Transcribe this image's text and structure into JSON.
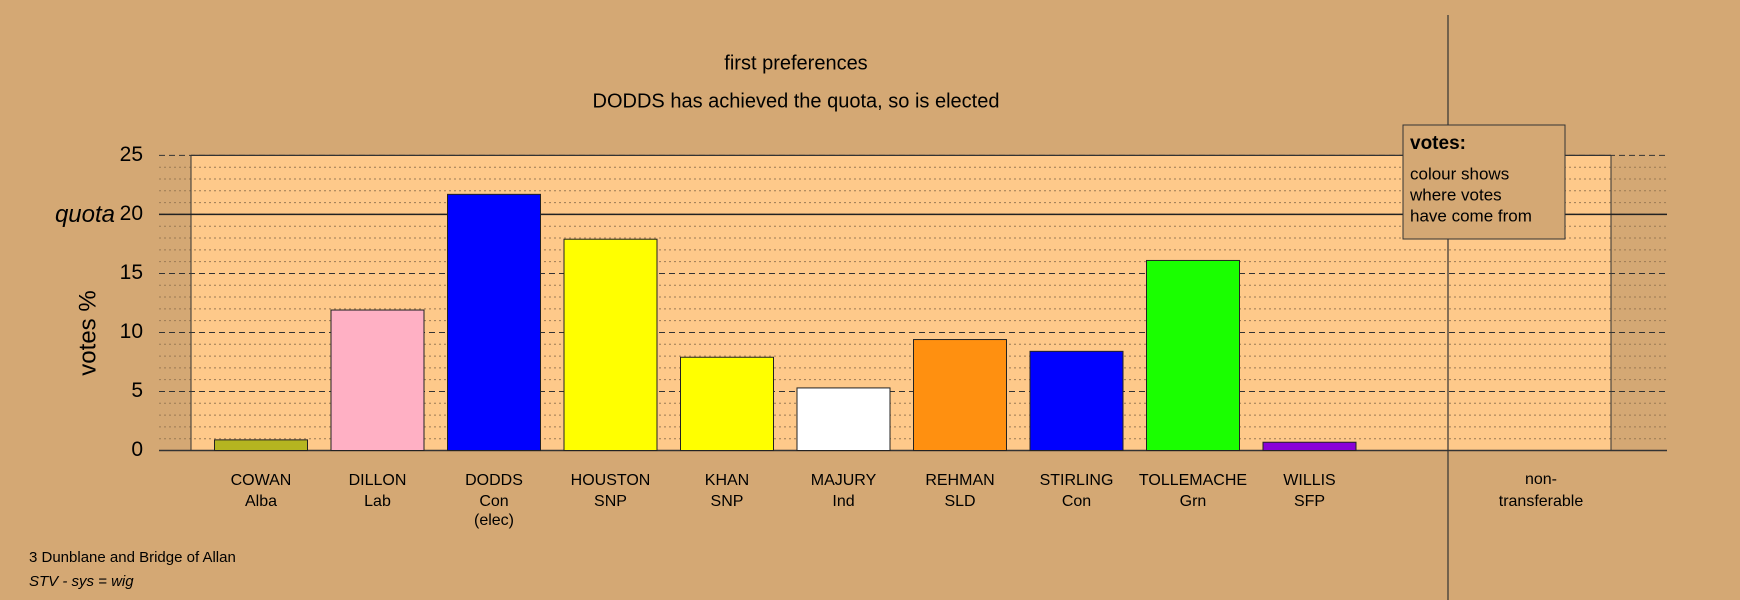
{
  "chart_data": {
    "type": "bar",
    "title": "first preferences",
    "subtitle": "DODDS has achieved the quota, so is elected",
    "y_label": "votes %",
    "categories": [
      "COWAN",
      "DILLON",
      "DODDS",
      "HOUSTON",
      "KHAN",
      "MAJURY",
      "REHMAN",
      "STIRLING",
      "TOLLEMACHE",
      "WILLIS"
    ],
    "parties": [
      "Alba",
      "Lab",
      "Con",
      "SNP",
      "SNP",
      "Ind",
      "SLD",
      "Con",
      "Grn",
      "SFP"
    ],
    "status": [
      null,
      null,
      "(elec)",
      null,
      null,
      null,
      null,
      null,
      null,
      null
    ],
    "values": [
      0.9,
      11.9,
      21.7,
      17.9,
      7.9,
      5.3,
      9.4,
      8.4,
      16.1,
      0.7
    ],
    "colors": [
      "#b5b520",
      "#ffb0c4",
      "#0000ff",
      "#ffff00",
      "#ffff00",
      "#ffffff",
      "#ff9010",
      "#0000ff",
      "#1aff00",
      "#8a00d8"
    ],
    "non_transferable": [
      "non-",
      "transferable"
    ],
    "quota": {
      "value": 20,
      "label": "quota"
    },
    "ylim": [
      0,
      25
    ],
    "yticks": [
      0,
      5,
      10,
      15,
      20,
      25
    ],
    "grid": true,
    "legend": {
      "title": "votes:",
      "lines": [
        "colour shows",
        "where votes",
        "have come from"
      ]
    },
    "footer": [
      "3 Dunblane and Bridge of Allan",
      "STV - sys = wig"
    ]
  }
}
